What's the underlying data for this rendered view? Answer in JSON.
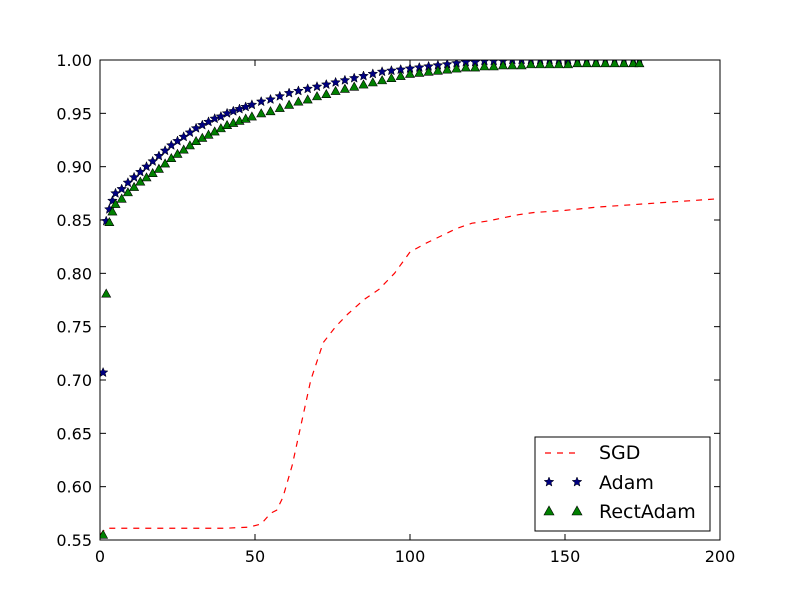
{
  "chart_data": {
    "type": "line",
    "xlim": [
      0,
      200
    ],
    "ylim": [
      0.55,
      1.0
    ],
    "xticks": [
      0,
      50,
      100,
      150,
      200
    ],
    "yticks": [
      0.55,
      0.6,
      0.65,
      0.7,
      0.75,
      0.8,
      0.85,
      0.9,
      0.95,
      1.0
    ],
    "xtick_labels": [
      "0",
      "50",
      "100",
      "150",
      "200"
    ],
    "ytick_labels": [
      "0.55",
      "0.60",
      "0.65",
      "0.70",
      "0.75",
      "0.80",
      "0.85",
      "0.90",
      "0.95",
      "1.00"
    ],
    "grid": false,
    "legend_position": "bottom-right",
    "series": [
      {
        "name": "SGD",
        "style": "dashed-line",
        "color": "#ff0000",
        "x": [
          0,
          2,
          5,
          10,
          20,
          30,
          40,
          48,
          52,
          55,
          57,
          59,
          62,
          65,
          68,
          72,
          76,
          80,
          85,
          90,
          95,
          100,
          105,
          110,
          115,
          120,
          125,
          130,
          135,
          140,
          150,
          160,
          170,
          180,
          190,
          200
        ],
        "y": [
          0.555,
          0.561,
          0.561,
          0.561,
          0.561,
          0.561,
          0.561,
          0.562,
          0.565,
          0.575,
          0.578,
          0.59,
          0.62,
          0.66,
          0.7,
          0.735,
          0.75,
          0.762,
          0.775,
          0.785,
          0.8,
          0.82,
          0.828,
          0.835,
          0.842,
          0.847,
          0.849,
          0.852,
          0.855,
          0.857,
          0.859,
          0.862,
          0.864,
          0.866,
          0.868,
          0.87
        ]
      },
      {
        "name": "Adam",
        "style": "star-markers",
        "color": "#000080",
        "x": [
          1,
          2,
          3,
          4,
          5,
          7,
          9,
          11,
          13,
          15,
          17,
          19,
          21,
          23,
          25,
          27,
          29,
          31,
          33,
          35,
          37,
          39,
          41,
          43,
          45,
          47,
          49,
          52,
          55,
          58,
          61,
          64,
          67,
          70,
          73,
          76,
          79,
          82,
          85,
          88,
          91,
          94,
          97,
          100,
          103,
          106,
          109,
          112,
          115,
          118,
          121,
          124,
          127,
          130,
          133,
          136,
          139,
          142,
          145,
          148,
          151,
          154,
          157,
          160,
          163,
          166,
          169,
          172,
          174
        ],
        "y": [
          0.707,
          0.849,
          0.86,
          0.868,
          0.875,
          0.879,
          0.885,
          0.89,
          0.895,
          0.9,
          0.905,
          0.91,
          0.915,
          0.92,
          0.924,
          0.928,
          0.932,
          0.936,
          0.939,
          0.942,
          0.945,
          0.947,
          0.95,
          0.952,
          0.954,
          0.956,
          0.958,
          0.961,
          0.963,
          0.966,
          0.969,
          0.971,
          0.973,
          0.975,
          0.977,
          0.979,
          0.981,
          0.983,
          0.985,
          0.987,
          0.989,
          0.99,
          0.991,
          0.992,
          0.993,
          0.994,
          0.995,
          0.996,
          0.997,
          0.998,
          0.998,
          0.999,
          0.999,
          0.999,
          1.0,
          1.0,
          1.0,
          1.0,
          1.0,
          1.0,
          1.0,
          1.0,
          1.0,
          1.0,
          1.0,
          1.0,
          1.0,
          1.0,
          1.0
        ]
      },
      {
        "name": "RectAdam",
        "style": "triangle-markers",
        "color": "#008000",
        "x": [
          1,
          2,
          3,
          4,
          5,
          7,
          9,
          11,
          13,
          15,
          17,
          19,
          21,
          23,
          25,
          27,
          29,
          31,
          33,
          35,
          37,
          39,
          41,
          43,
          45,
          47,
          49,
          52,
          55,
          58,
          61,
          64,
          67,
          70,
          73,
          76,
          79,
          82,
          85,
          88,
          91,
          94,
          97,
          100,
          103,
          106,
          109,
          112,
          115,
          118,
          121,
          124,
          127,
          130,
          133,
          136,
          139,
          142,
          145,
          148,
          151,
          154,
          157,
          160,
          163,
          166,
          169,
          172,
          174
        ],
        "y": [
          0.555,
          0.781,
          0.848,
          0.858,
          0.865,
          0.87,
          0.876,
          0.881,
          0.886,
          0.89,
          0.894,
          0.898,
          0.903,
          0.908,
          0.912,
          0.916,
          0.92,
          0.924,
          0.927,
          0.93,
          0.933,
          0.936,
          0.939,
          0.941,
          0.943,
          0.945,
          0.947,
          0.95,
          0.952,
          0.955,
          0.958,
          0.961,
          0.963,
          0.966,
          0.968,
          0.971,
          0.973,
          0.975,
          0.977,
          0.979,
          0.981,
          0.983,
          0.985,
          0.987,
          0.988,
          0.989,
          0.99,
          0.991,
          0.992,
          0.993,
          0.993,
          0.994,
          0.994,
          0.995,
          0.995,
          0.995,
          0.996,
          0.996,
          0.996,
          0.996,
          0.996,
          0.997,
          0.997,
          0.997,
          0.997,
          0.997,
          0.997,
          0.997,
          0.997
        ]
      }
    ]
  }
}
